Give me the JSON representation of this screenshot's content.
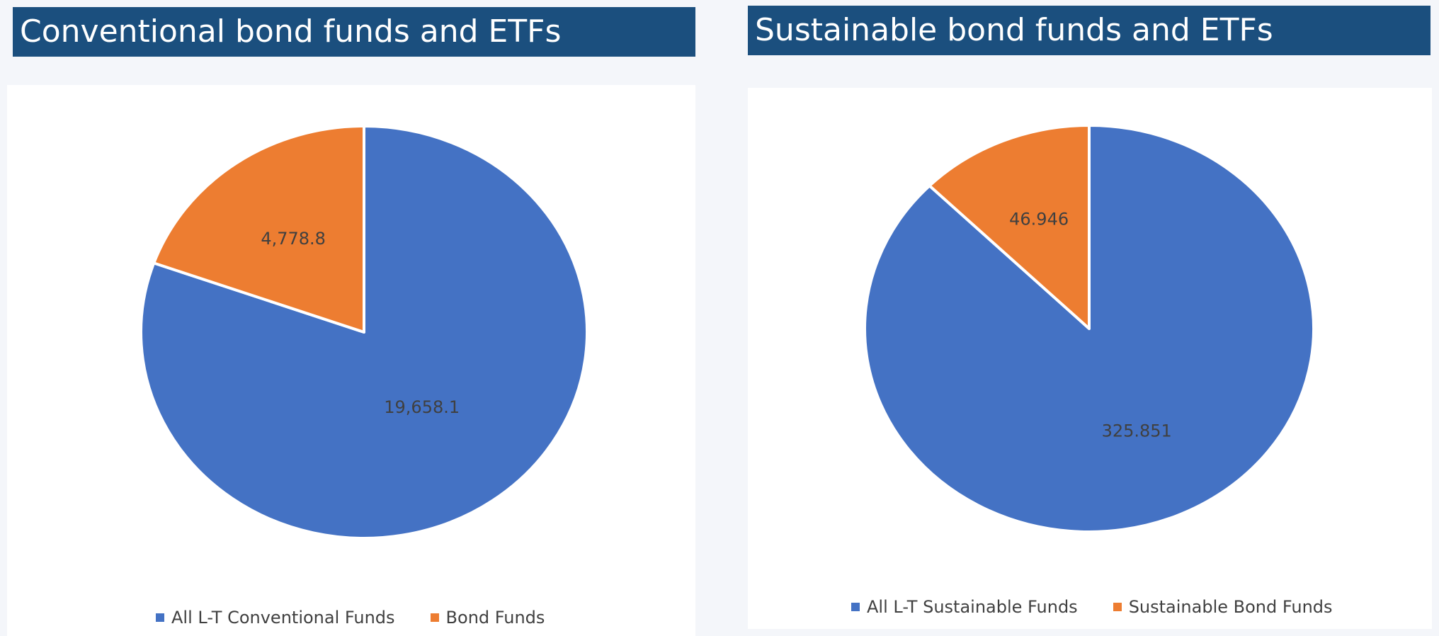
{
  "colors": {
    "banner": "#1b4f7e",
    "series_a": "#4472c4",
    "series_b": "#ed7d31"
  },
  "left": {
    "title": "Conventional bond funds and ETFs",
    "legend": [
      "All L-T Conventional Funds",
      "Bond Funds"
    ]
  },
  "right": {
    "title": "Sustainable bond funds and ETFs",
    "legend": [
      "All L-T Sustainable Funds",
      "Sustainable Bond Funds"
    ]
  },
  "chart_data": [
    {
      "type": "pie",
      "title": "Conventional bond funds and ETFs",
      "categories": [
        "All L-T Conventional Funds",
        "Bond Funds"
      ],
      "values": [
        19658.1,
        4778.8
      ],
      "labels": [
        "19,658.1",
        "4,778.8"
      ],
      "legend": "bottom"
    },
    {
      "type": "pie",
      "title": "Sustainable bond funds and ETFs",
      "categories": [
        "All L-T Sustainable Funds",
        "Sustainable Bond Funds"
      ],
      "values": [
        325.851,
        46.946
      ],
      "labels": [
        "325.851",
        "46.946"
      ],
      "legend": "bottom"
    }
  ]
}
